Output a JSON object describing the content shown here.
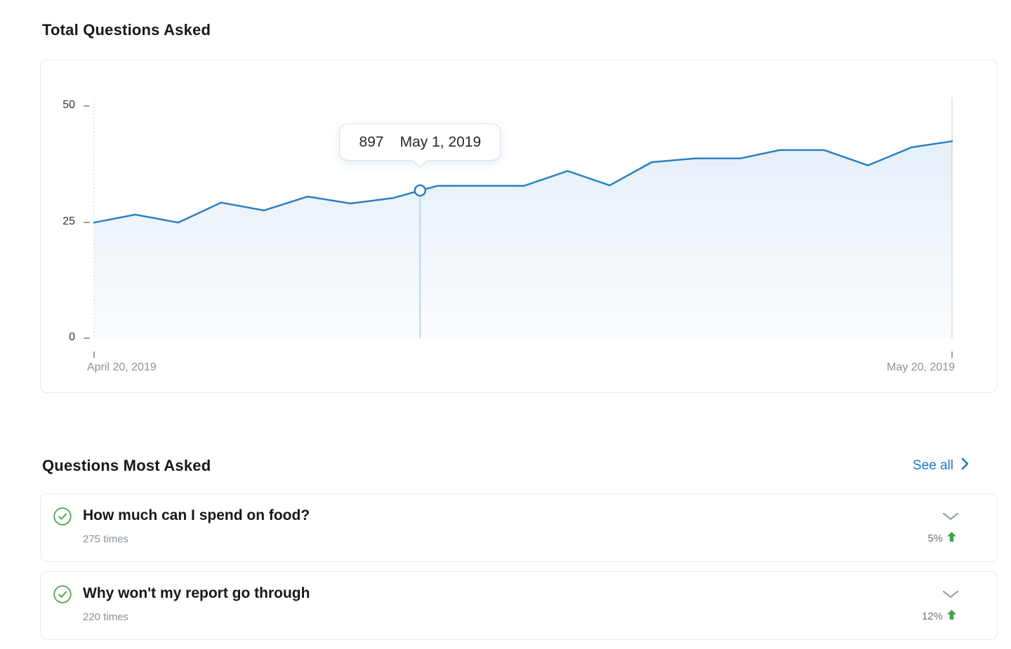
{
  "chart_data": {
    "type": "area",
    "title": "Total Questions Asked",
    "x_normalized": [
      0,
      0.048,
      0.098,
      0.148,
      0.198,
      0.249,
      0.299,
      0.349,
      0.38,
      0.4,
      0.501,
      0.552,
      0.601,
      0.65,
      0.701,
      0.753,
      0.799,
      0.851,
      0.902,
      0.953,
      1.0
    ],
    "values": [
      24.9,
      26.6,
      24.9,
      29.2,
      27.5,
      30.5,
      29.0,
      30.2,
      31.8,
      32.8,
      32.8,
      36.0,
      32.9,
      37.9,
      38.7,
      38.7,
      40.5,
      40.5,
      37.2,
      41.1,
      42.4
    ],
    "ylim": [
      0,
      50
    ],
    "yticks": [
      "0",
      "25",
      "50"
    ],
    "xtick_labels": [
      "April 20, 2019",
      "May 20, 2019"
    ],
    "highlight": {
      "index": 8,
      "value": "897",
      "date": "May 1, 2019"
    },
    "grid": false,
    "legend": "none",
    "line_color": "#2b80c2",
    "fill_color_top": "rgba(49,131,200,0.13)",
    "fill_color_bottom": "rgba(49,131,200,0.02)",
    "highlight_line_color": "#b5d8ef"
  },
  "questions_section": {
    "title": "Questions Most Asked",
    "see_all_label": "See all",
    "items": [
      {
        "question": "How much can I spend on food?",
        "times": "275 times",
        "change": "5%",
        "trend": "up"
      },
      {
        "question": "Why won't my report go through",
        "times": "220 times",
        "change": "12%",
        "trend": "up"
      }
    ]
  },
  "colors": {
    "accent_blue": "#2b80c2",
    "link_blue": "#1c79c2",
    "success_green": "#43a24a",
    "muted_gray": "#8b919a",
    "axis_dark": "#2e3238",
    "card_border": "#ececf0"
  },
  "icons": {
    "status": "check-circle",
    "expand": "chevron-down",
    "trend": "arrow-up-filled",
    "see_all": "chevron-right"
  }
}
